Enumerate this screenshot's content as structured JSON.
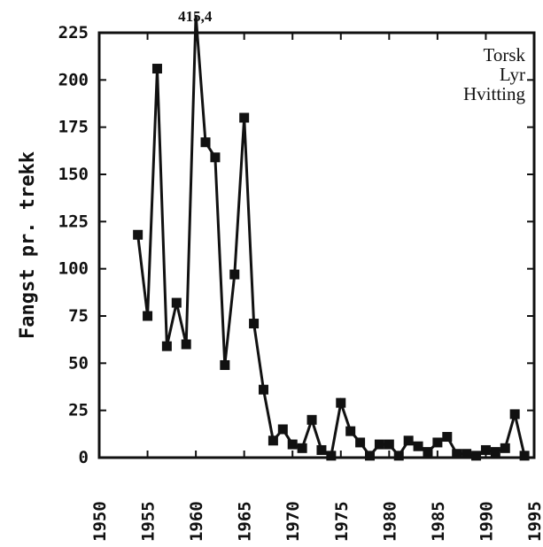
{
  "chart_data": {
    "type": "line",
    "title": "",
    "xlabel": "",
    "ylabel": "Fangst pr. trekk",
    "xlim": [
      1950,
      1995
    ],
    "ylim": [
      0,
      225
    ],
    "x_ticks": [
      "1950",
      "1955",
      "1960",
      "1965",
      "1970",
      "1975",
      "1980",
      "1985",
      "1990",
      "1995"
    ],
    "y_ticks": [
      "0",
      "25",
      "50",
      "75",
      "100",
      "125",
      "150",
      "175",
      "200",
      "225"
    ],
    "legend": [
      "Torsk",
      "Lyr",
      "Hvitting"
    ],
    "legend_position": "top-right",
    "annotations": [
      {
        "text": "415,4",
        "x": 1959,
        "y": 415.4
      }
    ],
    "series": [
      {
        "points": [
          [
            1954,
            118
          ],
          [
            1955,
            75
          ],
          [
            1956,
            206
          ],
          [
            1957,
            59
          ],
          [
            1958,
            82
          ],
          [
            1959,
            60
          ],
          [
            1960,
            415.4
          ],
          [
            1961,
            167
          ],
          [
            1962,
            159
          ],
          [
            1963,
            49
          ],
          [
            1964,
            97
          ],
          [
            1965,
            180
          ],
          [
            1966,
            71
          ],
          [
            1967,
            36
          ],
          [
            1968,
            9
          ],
          [
            1969,
            15
          ],
          [
            1970,
            7
          ],
          [
            1971,
            5
          ],
          [
            1972,
            20
          ],
          [
            1973,
            4
          ],
          [
            1974,
            1
          ],
          [
            1975,
            29
          ],
          [
            1976,
            14
          ],
          [
            1977,
            8
          ],
          [
            1978,
            1
          ],
          [
            1979,
            7
          ],
          [
            1980,
            7
          ],
          [
            1981,
            1
          ],
          [
            1982,
            9
          ],
          [
            1983,
            6
          ],
          [
            1984,
            3
          ],
          [
            1985,
            8
          ],
          [
            1986,
            11
          ],
          [
            1987,
            2
          ],
          [
            1988,
            2
          ],
          [
            1989,
            1
          ],
          [
            1990,
            4
          ],
          [
            1991,
            3
          ],
          [
            1992,
            5
          ],
          [
            1993,
            23
          ],
          [
            1994,
            1
          ]
        ]
      }
    ]
  }
}
